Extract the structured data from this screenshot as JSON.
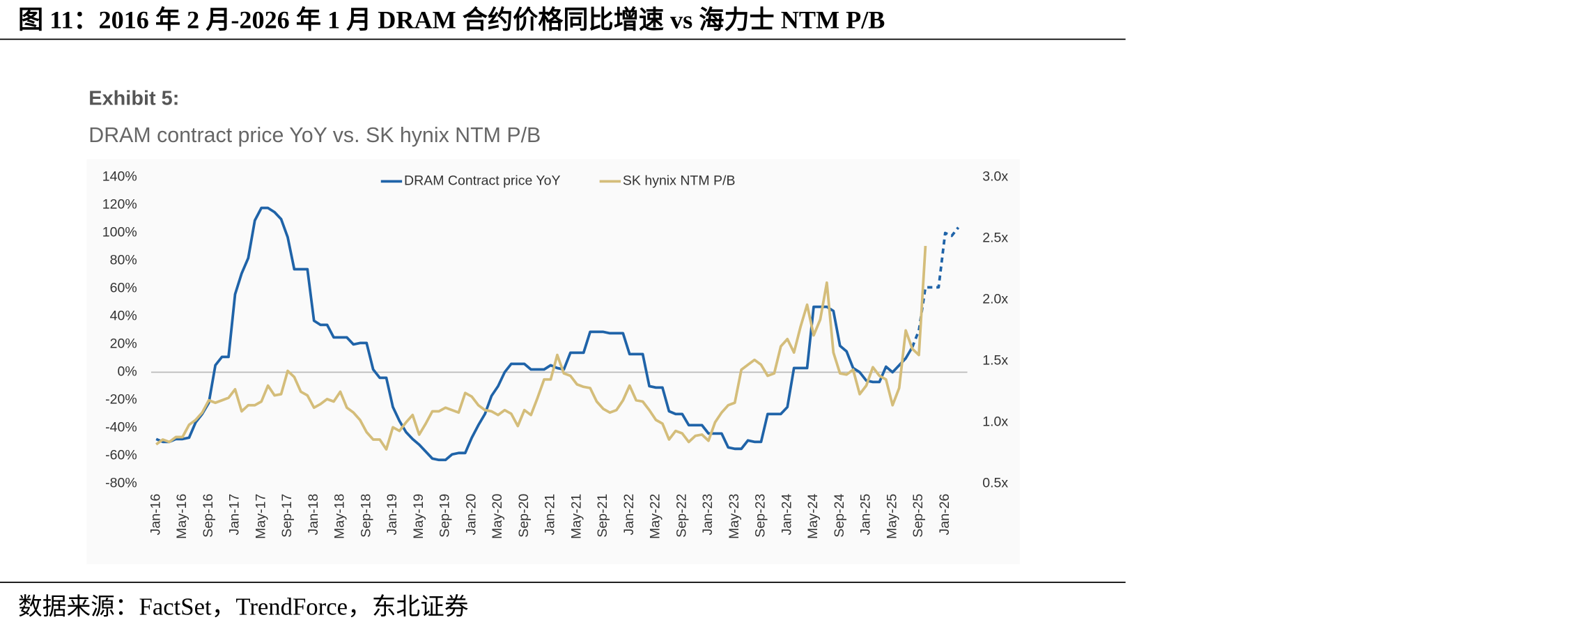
{
  "header": {
    "title": "图 11：2016 年 2 月-2026 年 1 月 DRAM 合约价格同比增速 vs 海力士 NTM P/B"
  },
  "footer": {
    "source": "数据来源：FactSet，TrendForce，东北证券"
  },
  "chart_data": {
    "type": "line",
    "label": "Exhibit 5:",
    "title": "DRAM contract price YoY vs. SK hynix NTM P/B",
    "categories": [
      "Jan-16",
      null,
      null,
      null,
      "May-16",
      null,
      null,
      null,
      "Sep-16",
      null,
      null,
      null,
      "Jan-17",
      null,
      null,
      null,
      "May-17",
      null,
      null,
      null,
      "Sep-17",
      null,
      null,
      null,
      "Jan-18",
      null,
      null,
      null,
      "May-18",
      null,
      null,
      null,
      "Sep-18",
      null,
      null,
      null,
      "Jan-19",
      null,
      null,
      null,
      "May-19",
      null,
      null,
      null,
      "Sep-19",
      null,
      null,
      null,
      "Jan-20",
      null,
      null,
      null,
      "May-20",
      null,
      null,
      null,
      "Sep-20",
      null,
      null,
      null,
      "Jan-21",
      null,
      null,
      null,
      "May-21",
      null,
      null,
      null,
      "Sep-21",
      null,
      null,
      null,
      "Jan-22",
      null,
      null,
      null,
      "May-22",
      null,
      null,
      null,
      "Sep-22",
      null,
      null,
      null,
      "Jan-23",
      null,
      null,
      null,
      "May-23",
      null,
      null,
      null,
      "Sep-23",
      null,
      null,
      null,
      "Jan-24",
      null,
      null,
      null,
      "May-24",
      null,
      null,
      null,
      "Sep-24",
      null,
      null,
      null,
      "Jan-25",
      null,
      null,
      null,
      "May-25",
      null,
      null,
      null,
      "Sep-25",
      null,
      null,
      null,
      "Jan-26",
      null,
      null
    ],
    "series": [
      {
        "name": "DRAM Contract price YoY",
        "color": "#1f63a8",
        "axis": "y",
        "dashed_from": 115,
        "values": [
          -48,
          -50,
          -50,
          -48,
          -48,
          -47,
          -36,
          -30,
          -22,
          5,
          11,
          11,
          56,
          71,
          82,
          109,
          118,
          118,
          115,
          110,
          97,
          74,
          74,
          74,
          37,
          34,
          34,
          25,
          25,
          25,
          20,
          21,
          21,
          2,
          -4,
          -4,
          -25,
          -35,
          -43,
          -48,
          -52,
          -57,
          -62,
          -63,
          -63,
          -59,
          -58,
          -58,
          -47,
          -38,
          -30,
          -17,
          -10,
          0,
          6,
          6,
          6,
          2,
          2,
          2,
          5,
          3,
          2,
          14,
          14,
          14,
          29,
          29,
          29,
          28,
          28,
          28,
          13,
          13,
          13,
          -10,
          -11,
          -11,
          -28,
          -30,
          -30,
          -38,
          -38,
          -38,
          -44,
          -44,
          -44,
          -54,
          -55,
          -55,
          -49,
          -50,
          -50,
          -30,
          -30,
          -30,
          -25,
          3,
          3,
          3,
          47,
          47,
          47,
          44,
          19,
          15,
          3,
          0,
          -6,
          -7,
          -7,
          4,
          0,
          5,
          10,
          18,
          30,
          61,
          61,
          61,
          100,
          98,
          104
        ]
      },
      {
        "name": "SK hynix NTM P/B",
        "color": "#d4bd7a",
        "axis": "y2",
        "values": [
          0.82,
          0.86,
          0.84,
          0.88,
          0.88,
          0.98,
          1.02,
          1.08,
          1.18,
          1.16,
          1.18,
          1.2,
          1.27,
          1.09,
          1.14,
          1.14,
          1.17,
          1.3,
          1.22,
          1.23,
          1.42,
          1.37,
          1.25,
          1.22,
          1.12,
          1.15,
          1.19,
          1.17,
          1.25,
          1.12,
          1.08,
          1.02,
          0.92,
          0.86,
          0.86,
          0.78,
          0.96,
          0.93,
          1.0,
          1.06,
          0.9,
          0.99,
          1.09,
          1.09,
          1.12,
          1.1,
          1.08,
          1.24,
          1.21,
          1.14,
          1.1,
          1.09,
          1.06,
          1.1,
          1.07,
          0.97,
          1.1,
          1.06,
          1.2,
          1.35,
          1.35,
          1.55,
          1.4,
          1.38,
          1.31,
          1.29,
          1.28,
          1.17,
          1.11,
          1.08,
          1.1,
          1.18,
          1.3,
          1.18,
          1.17,
          1.1,
          1.02,
          0.99,
          0.86,
          0.93,
          0.91,
          0.84,
          0.89,
          0.9,
          0.85,
          1.0,
          1.08,
          1.14,
          1.16,
          1.43,
          1.47,
          1.51,
          1.47,
          1.38,
          1.4,
          1.62,
          1.68,
          1.57,
          1.78,
          1.96,
          1.71,
          1.84,
          2.14,
          1.57,
          1.4,
          1.39,
          1.43,
          1.23,
          1.3,
          1.45,
          1.38,
          1.35,
          1.14,
          1.28,
          1.75,
          1.6,
          1.55,
          2.44,
          null,
          null,
          null,
          null,
          null
        ]
      }
    ],
    "ylim": [
      -80,
      140
    ],
    "yticks": [
      {
        "value": -80,
        "label": "-80%"
      },
      {
        "value": -60,
        "label": "-60%"
      },
      {
        "value": -40,
        "label": "-40%"
      },
      {
        "value": -20,
        "label": "-20%"
      },
      {
        "value": 0,
        "label": "0%"
      },
      {
        "value": 20,
        "label": "20%"
      },
      {
        "value": 40,
        "label": "40%"
      },
      {
        "value": 60,
        "label": "60%"
      },
      {
        "value": 80,
        "label": "80%"
      },
      {
        "value": 100,
        "label": "100%"
      },
      {
        "value": 120,
        "label": "120%"
      },
      {
        "value": 140,
        "label": "140%"
      }
    ],
    "y2lim": [
      0.5,
      3.0
    ],
    "y2ticks": [
      {
        "value": 0.5,
        "label": "0.5x"
      },
      {
        "value": 1.0,
        "label": "1.0x"
      },
      {
        "value": 1.5,
        "label": "1.5x"
      },
      {
        "value": 2.0,
        "label": "2.0x"
      },
      {
        "value": 2.5,
        "label": "2.5x"
      },
      {
        "value": 3.0,
        "label": "3.0x"
      }
    ],
    "zero_line": true,
    "grid": false,
    "legend": "top"
  }
}
